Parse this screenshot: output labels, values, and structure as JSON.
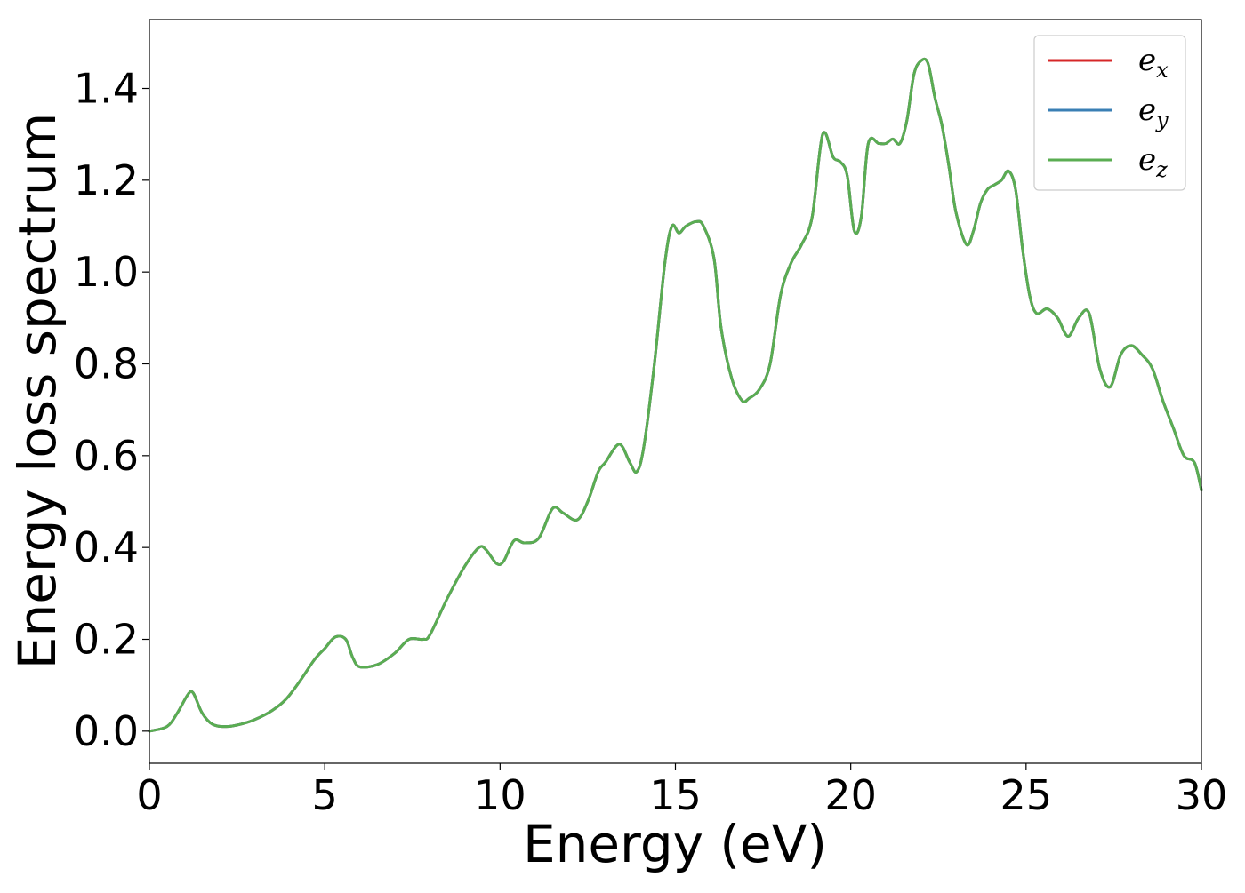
{
  "chart_data": {
    "type": "line",
    "title": "",
    "xlabel": "Energy (eV)",
    "ylabel": "Energy loss spectrum",
    "xlim": [
      0,
      30
    ],
    "ylim": [
      -0.07,
      1.55
    ],
    "xticks": [
      0,
      5,
      10,
      15,
      20,
      25,
      30
    ],
    "xtick_labels": [
      "0",
      "5",
      "10",
      "15",
      "20",
      "25",
      "30"
    ],
    "yticks": [
      0.0,
      0.2,
      0.4,
      0.6,
      0.8,
      1.0,
      1.2,
      1.4
    ],
    "ytick_labels": [
      "0.0",
      "0.2",
      "0.4",
      "0.6",
      "0.8",
      "1.0",
      "1.2",
      "1.4"
    ],
    "grid": false,
    "legend": {
      "position": "top-right"
    },
    "series": [
      {
        "name": "e_x",
        "label_base": "e",
        "label_sub": "x",
        "color": "#d62728",
        "x": [
          0,
          0.5,
          0.8,
          1.1,
          1.25,
          1.5,
          1.8,
          2.2,
          2.6,
          3.0,
          3.5,
          3.9,
          4.3,
          4.7,
          5.0,
          5.3,
          5.6,
          5.8,
          6.0,
          6.5,
          7.0,
          7.4,
          7.8,
          8.0,
          8.5,
          9.0,
          9.4,
          9.6,
          9.9,
          10.1,
          10.4,
          10.7,
          11.1,
          11.5,
          11.8,
          12.2,
          12.5,
          12.8,
          13.0,
          13.4,
          13.7,
          13.9,
          14.1,
          14.4,
          14.7,
          14.9,
          15.1,
          15.3,
          15.6,
          15.8,
          16.1,
          16.3,
          16.6,
          16.9,
          17.1,
          17.4,
          17.7,
          18.0,
          18.3,
          18.6,
          18.9,
          19.2,
          19.5,
          19.7,
          19.9,
          20.1,
          20.3,
          20.5,
          20.8,
          21.0,
          21.2,
          21.4,
          21.6,
          21.8,
          22.0,
          22.2,
          22.4,
          22.6,
          22.8,
          23.0,
          23.3,
          23.5,
          23.7,
          23.9,
          24.1,
          24.3,
          24.5,
          24.7,
          24.9,
          25.1,
          25.3,
          25.6,
          25.9,
          26.2,
          26.5,
          26.8,
          27.1,
          27.4,
          27.7,
          28.0,
          28.3,
          28.6,
          28.9,
          29.2,
          29.5,
          29.8,
          30.0
        ],
        "values": [
          0.0,
          0.01,
          0.04,
          0.08,
          0.083,
          0.04,
          0.015,
          0.01,
          0.015,
          0.025,
          0.045,
          0.07,
          0.11,
          0.155,
          0.18,
          0.205,
          0.2,
          0.16,
          0.14,
          0.145,
          0.17,
          0.2,
          0.2,
          0.21,
          0.29,
          0.36,
          0.4,
          0.395,
          0.365,
          0.37,
          0.415,
          0.41,
          0.42,
          0.485,
          0.475,
          0.46,
          0.5,
          0.565,
          0.585,
          0.625,
          0.585,
          0.565,
          0.62,
          0.8,
          1.02,
          1.1,
          1.085,
          1.1,
          1.11,
          1.1,
          1.03,
          0.88,
          0.77,
          0.72,
          0.725,
          0.745,
          0.8,
          0.95,
          1.02,
          1.06,
          1.12,
          1.3,
          1.25,
          1.24,
          1.21,
          1.09,
          1.12,
          1.28,
          1.28,
          1.28,
          1.29,
          1.28,
          1.33,
          1.43,
          1.46,
          1.455,
          1.38,
          1.32,
          1.23,
          1.13,
          1.06,
          1.09,
          1.15,
          1.18,
          1.19,
          1.2,
          1.22,
          1.18,
          1.05,
          0.95,
          0.91,
          0.92,
          0.9,
          0.86,
          0.9,
          0.91,
          0.79,
          0.75,
          0.82,
          0.84,
          0.82,
          0.79,
          0.72,
          0.66,
          0.6,
          0.585,
          0.525
        ]
      },
      {
        "name": "e_y",
        "label_base": "e",
        "label_sub": "y",
        "color": "#3a7fb4",
        "x": [
          0,
          0.5,
          0.8,
          1.1,
          1.25,
          1.5,
          1.8,
          2.2,
          2.6,
          3.0,
          3.5,
          3.9,
          4.3,
          4.7,
          5.0,
          5.3,
          5.6,
          5.8,
          6.0,
          6.5,
          7.0,
          7.4,
          7.8,
          8.0,
          8.5,
          9.0,
          9.4,
          9.6,
          9.9,
          10.1,
          10.4,
          10.7,
          11.1,
          11.5,
          11.8,
          12.2,
          12.5,
          12.8,
          13.0,
          13.4,
          13.7,
          13.9,
          14.1,
          14.4,
          14.7,
          14.9,
          15.1,
          15.3,
          15.6,
          15.8,
          16.1,
          16.3,
          16.6,
          16.9,
          17.1,
          17.4,
          17.7,
          18.0,
          18.3,
          18.6,
          18.9,
          19.2,
          19.5,
          19.7,
          19.9,
          20.1,
          20.3,
          20.5,
          20.8,
          21.0,
          21.2,
          21.4,
          21.6,
          21.8,
          22.0,
          22.2,
          22.4,
          22.6,
          22.8,
          23.0,
          23.3,
          23.5,
          23.7,
          23.9,
          24.1,
          24.3,
          24.5,
          24.7,
          24.9,
          25.1,
          25.3,
          25.6,
          25.9,
          26.2,
          26.5,
          26.8,
          27.1,
          27.4,
          27.7,
          28.0,
          28.3,
          28.6,
          28.9,
          29.2,
          29.5,
          29.8,
          30.0
        ],
        "values": [
          0.0,
          0.01,
          0.04,
          0.08,
          0.083,
          0.04,
          0.015,
          0.01,
          0.015,
          0.025,
          0.045,
          0.07,
          0.11,
          0.155,
          0.18,
          0.205,
          0.2,
          0.16,
          0.14,
          0.145,
          0.17,
          0.2,
          0.2,
          0.21,
          0.29,
          0.36,
          0.4,
          0.395,
          0.365,
          0.37,
          0.415,
          0.41,
          0.42,
          0.485,
          0.475,
          0.46,
          0.5,
          0.565,
          0.585,
          0.625,
          0.585,
          0.565,
          0.62,
          0.8,
          1.02,
          1.1,
          1.085,
          1.1,
          1.11,
          1.1,
          1.03,
          0.88,
          0.77,
          0.72,
          0.725,
          0.745,
          0.8,
          0.95,
          1.02,
          1.06,
          1.12,
          1.3,
          1.25,
          1.24,
          1.21,
          1.09,
          1.12,
          1.28,
          1.28,
          1.28,
          1.29,
          1.28,
          1.33,
          1.43,
          1.46,
          1.455,
          1.38,
          1.32,
          1.23,
          1.13,
          1.06,
          1.09,
          1.15,
          1.18,
          1.19,
          1.2,
          1.22,
          1.18,
          1.05,
          0.95,
          0.91,
          0.92,
          0.9,
          0.86,
          0.9,
          0.91,
          0.79,
          0.75,
          0.82,
          0.84,
          0.82,
          0.79,
          0.72,
          0.66,
          0.6,
          0.585,
          0.525
        ]
      },
      {
        "name": "e_z",
        "label_base": "e",
        "label_sub": "z",
        "color": "#5aad52",
        "x": [
          0,
          0.5,
          0.8,
          1.1,
          1.25,
          1.5,
          1.8,
          2.2,
          2.6,
          3.0,
          3.5,
          3.9,
          4.3,
          4.7,
          5.0,
          5.3,
          5.6,
          5.8,
          6.0,
          6.5,
          7.0,
          7.4,
          7.8,
          8.0,
          8.5,
          9.0,
          9.4,
          9.6,
          9.9,
          10.1,
          10.4,
          10.7,
          11.1,
          11.5,
          11.8,
          12.2,
          12.5,
          12.8,
          13.0,
          13.4,
          13.7,
          13.9,
          14.1,
          14.4,
          14.7,
          14.9,
          15.1,
          15.3,
          15.6,
          15.8,
          16.1,
          16.3,
          16.6,
          16.9,
          17.1,
          17.4,
          17.7,
          18.0,
          18.3,
          18.6,
          18.9,
          19.2,
          19.5,
          19.7,
          19.9,
          20.1,
          20.3,
          20.5,
          20.8,
          21.0,
          21.2,
          21.4,
          21.6,
          21.8,
          22.0,
          22.2,
          22.4,
          22.6,
          22.8,
          23.0,
          23.3,
          23.5,
          23.7,
          23.9,
          24.1,
          24.3,
          24.5,
          24.7,
          24.9,
          25.1,
          25.3,
          25.6,
          25.9,
          26.2,
          26.5,
          26.8,
          27.1,
          27.4,
          27.7,
          28.0,
          28.3,
          28.6,
          28.9,
          29.2,
          29.5,
          29.8,
          30.0
        ],
        "values": [
          0.0,
          0.01,
          0.04,
          0.08,
          0.083,
          0.04,
          0.015,
          0.01,
          0.015,
          0.025,
          0.045,
          0.07,
          0.11,
          0.155,
          0.18,
          0.205,
          0.2,
          0.16,
          0.14,
          0.145,
          0.17,
          0.2,
          0.2,
          0.21,
          0.29,
          0.36,
          0.4,
          0.395,
          0.365,
          0.37,
          0.415,
          0.41,
          0.42,
          0.485,
          0.475,
          0.46,
          0.5,
          0.565,
          0.585,
          0.625,
          0.585,
          0.565,
          0.62,
          0.8,
          1.02,
          1.1,
          1.085,
          1.1,
          1.11,
          1.1,
          1.03,
          0.88,
          0.77,
          0.72,
          0.725,
          0.745,
          0.8,
          0.95,
          1.02,
          1.06,
          1.12,
          1.3,
          1.25,
          1.24,
          1.21,
          1.09,
          1.12,
          1.28,
          1.28,
          1.28,
          1.29,
          1.28,
          1.33,
          1.43,
          1.46,
          1.455,
          1.38,
          1.32,
          1.23,
          1.13,
          1.06,
          1.09,
          1.15,
          1.18,
          1.19,
          1.2,
          1.22,
          1.18,
          1.05,
          0.95,
          0.91,
          0.92,
          0.9,
          0.86,
          0.9,
          0.91,
          0.79,
          0.75,
          0.82,
          0.84,
          0.82,
          0.79,
          0.72,
          0.66,
          0.6,
          0.585,
          0.525
        ]
      }
    ]
  }
}
